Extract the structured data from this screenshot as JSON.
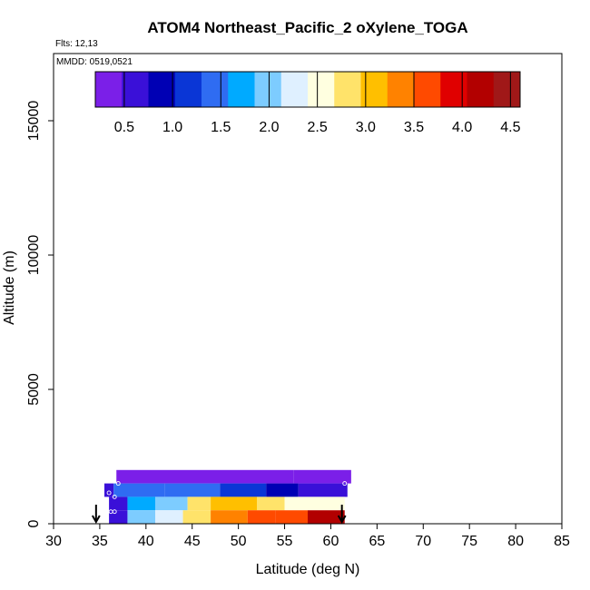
{
  "chart_data": {
    "type": "heatmap",
    "title": "ATOM4 Northeast_Pacific_2 oXylene_TOGA",
    "flights_label": "Flts: 12,13",
    "mmdd_label": "MMDD: 0519,0521",
    "xlabel": "Latitude (deg N)",
    "ylabel": "Altitude (m)",
    "xlim": [
      30,
      85
    ],
    "ylim": [
      0,
      17500
    ],
    "x_ticks": [
      "30",
      "35",
      "40",
      "45",
      "50",
      "55",
      "60",
      "65",
      "70",
      "75",
      "80",
      "85"
    ],
    "y_ticks": [
      "0",
      "5000",
      "10000",
      "15000"
    ],
    "colorbar": {
      "min": 0.2,
      "max": 4.6,
      "ticks": [
        "0.5",
        "1.0",
        "1.5",
        "2.0",
        "2.5",
        "3.0",
        "3.5",
        "4.0",
        "4.5"
      ],
      "colors": [
        "#7b1fe8",
        "#3a10d8",
        "#0000b4",
        "#0a36d6",
        "#2f6cf2",
        "#00aaff",
        "#7dccff",
        "#dff0ff",
        "#ffffe0",
        "#ffe36a",
        "#ffbf00",
        "#ff8200",
        "#ff4a00",
        "#e00000",
        "#b20000",
        "#a01818"
      ]
    },
    "layers": [
      {
        "name": "upper",
        "alt_range": [
          1500,
          2000
        ],
        "lat_range": [
          36.8,
          62.2
        ],
        "segments": [
          {
            "lat": [
              36.8,
              46.5
            ],
            "value": 0.4
          },
          {
            "lat": [
              46.5,
              56.0
            ],
            "value": 0.3
          },
          {
            "lat": [
              56.0,
              62.2
            ],
            "value": 0.4
          }
        ]
      },
      {
        "name": "middle",
        "alt_range": [
          1000,
          1500
        ],
        "lat_range": [
          35.5,
          61.8
        ],
        "segments": [
          {
            "lat": [
              35.5,
              36.5
            ],
            "value": 0.5
          },
          {
            "lat": [
              36.5,
              42.0
            ],
            "value": 1.4
          },
          {
            "lat": [
              42.0,
              48.0
            ],
            "value": 1.3
          },
          {
            "lat": [
              48.0,
              53.0
            ],
            "value": 1.1
          },
          {
            "lat": [
              53.0,
              56.5
            ],
            "value": 0.9
          },
          {
            "lat": [
              56.5,
              61.8
            ],
            "value": 0.6
          }
        ]
      },
      {
        "name": "lower",
        "alt_range": [
          500,
          1000
        ],
        "lat_range": [
          36.0,
          61.5
        ],
        "segments": [
          {
            "lat": [
              36.0,
              38.0
            ],
            "value": 0.6
          },
          {
            "lat": [
              38.0,
              41.0
            ],
            "value": 1.7
          },
          {
            "lat": [
              41.0,
              44.5
            ],
            "value": 2.1
          },
          {
            "lat": [
              44.5,
              47.0
            ],
            "value": 2.7
          },
          {
            "lat": [
              47.0,
              52.0
            ],
            "value": 3.2
          },
          {
            "lat": [
              52.0,
              55.0
            ],
            "value": 2.9
          },
          {
            "lat": [
              55.0,
              61.5
            ],
            "value": 2.6
          }
        ]
      },
      {
        "name": "bottom",
        "alt_range": [
          0,
          500
        ],
        "lat_range": [
          36.0,
          61.5
        ],
        "segments": [
          {
            "lat": [
              36.0,
              38.0
            ],
            "value": 0.6
          },
          {
            "lat": [
              38.0,
              41.0
            ],
            "value": 1.9
          },
          {
            "lat": [
              41.0,
              44.0
            ],
            "value": 2.2
          },
          {
            "lat": [
              44.0,
              47.0
            ],
            "value": 2.8
          },
          {
            "lat": [
              47.0,
              51.0
            ],
            "value": 3.3
          },
          {
            "lat": [
              51.0,
              54.0
            ],
            "value": 3.5
          },
          {
            "lat": [
              54.0,
              57.5
            ],
            "value": 3.7
          },
          {
            "lat": [
              57.5,
              61.5
            ],
            "value": 4.2
          }
        ]
      }
    ],
    "markers": [
      {
        "lat": 37.0,
        "alt": 1500
      },
      {
        "lat": 36.0,
        "alt": 1150
      },
      {
        "lat": 36.6,
        "alt": 1000
      },
      {
        "lat": 36.2,
        "alt": 450
      },
      {
        "lat": 36.6,
        "alt": 450
      },
      {
        "lat": 61.5,
        "alt": 1500
      }
    ],
    "arrows": [
      {
        "lat": 34.6
      },
      {
        "lat": 61.2
      }
    ]
  }
}
